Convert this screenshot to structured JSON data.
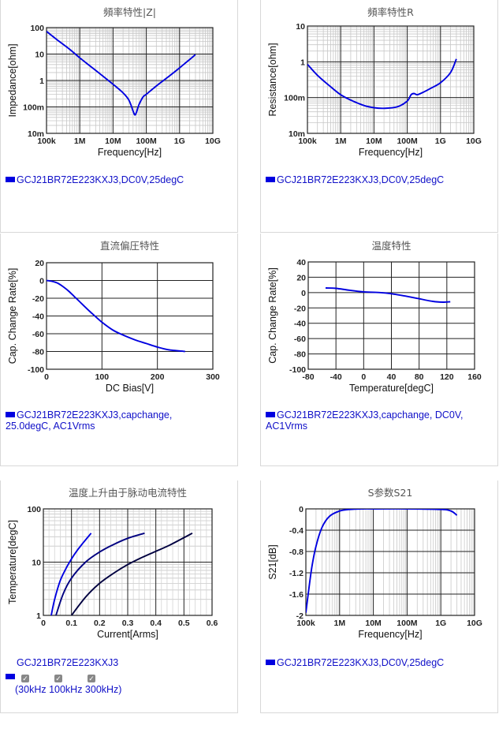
{
  "chart_data": [
    {
      "type": "line",
      "title": "頻率特性|Z|",
      "xlabel": "Frequency[Hz]",
      "ylabel": "Impedance[ohm]",
      "x_scale": "log",
      "y_scale": "log",
      "xlim": [
        100000,
        10000000000
      ],
      "ylim": [
        0.01,
        100
      ],
      "x_ticks": [
        {
          "v": 100000,
          "label": "100k"
        },
        {
          "v": 1000000,
          "label": "1M"
        },
        {
          "v": 10000000,
          "label": "10M"
        },
        {
          "v": 100000000,
          "label": "100M"
        },
        {
          "v": 1000000000,
          "label": "1G"
        },
        {
          "v": 10000000000,
          "label": "10G"
        }
      ],
      "y_ticks": [
        {
          "v": 0.01,
          "label": "10m"
        },
        {
          "v": 0.1,
          "label": "100m"
        },
        {
          "v": 1,
          "label": "1"
        },
        {
          "v": 10,
          "label": "10"
        },
        {
          "v": 100,
          "label": "100"
        }
      ],
      "grid": true,
      "series": [
        {
          "name": "GCJ21BR72E223KXJ3,DC0V,25degC",
          "color": "#0000e0",
          "x": [
            100000,
            200000,
            500000,
            1000000,
            2000000,
            5000000,
            10000000,
            20000000,
            30000000,
            40000000,
            45000000,
            50000000,
            60000000,
            80000000,
            100000000,
            200000000,
            500000000,
            1000000000,
            2000000000,
            3000000000
          ],
          "y": [
            72,
            36,
            15,
            7.2,
            3.6,
            1.45,
            0.72,
            0.34,
            0.18,
            0.07,
            0.05,
            0.06,
            0.12,
            0.24,
            0.3,
            0.62,
            1.5,
            3,
            6.2,
            9.5
          ]
        }
      ]
    },
    {
      "type": "line",
      "title": "頻率特性R",
      "xlabel": "Frequency[Hz]",
      "ylabel": "Resistance[ohm]",
      "x_scale": "log",
      "y_scale": "log",
      "xlim": [
        100000,
        10000000000
      ],
      "ylim": [
        0.01,
        10
      ],
      "x_ticks": [
        {
          "v": 100000,
          "label": "100k"
        },
        {
          "v": 1000000,
          "label": "1M"
        },
        {
          "v": 10000000,
          "label": "10M"
        },
        {
          "v": 100000000,
          "label": "100M"
        },
        {
          "v": 1000000000,
          "label": "1G"
        },
        {
          "v": 10000000000,
          "label": "10G"
        }
      ],
      "y_ticks": [
        {
          "v": 0.01,
          "label": "10m"
        },
        {
          "v": 0.1,
          "label": "100m"
        },
        {
          "v": 1,
          "label": "1"
        },
        {
          "v": 10,
          "label": "10"
        }
      ],
      "grid": true,
      "series": [
        {
          "name": "GCJ21BR72E223KXJ3,DC0V,25degC",
          "color": "#0000e0",
          "x": [
            100000,
            200000,
            500000,
            1000000,
            2000000,
            5000000,
            10000000,
            20000000,
            50000000,
            100000000,
            130000000,
            160000000,
            200000000,
            300000000,
            500000000,
            1000000000,
            2000000000,
            3000000000
          ],
          "y": [
            0.85,
            0.42,
            0.2,
            0.12,
            0.085,
            0.06,
            0.052,
            0.05,
            0.055,
            0.08,
            0.12,
            0.13,
            0.12,
            0.14,
            0.18,
            0.26,
            0.5,
            1.2
          ]
        }
      ]
    },
    {
      "type": "line",
      "title": "直流偏圧特性",
      "xlabel": "DC Bias[V]",
      "ylabel": "Cap. Change Rate[%]",
      "xlim": [
        0,
        300
      ],
      "ylim": [
        -100,
        20
      ],
      "x_ticks": [
        {
          "v": 0,
          "label": "0"
        },
        {
          "v": 100,
          "label": "100"
        },
        {
          "v": 200,
          "label": "200"
        },
        {
          "v": 300,
          "label": "300"
        }
      ],
      "y_ticks": [
        {
          "v": 20,
          "label": "20"
        },
        {
          "v": 0,
          "label": "0"
        },
        {
          "v": -20,
          "label": "-20"
        },
        {
          "v": -40,
          "label": "-40"
        },
        {
          "v": -60,
          "label": "-60"
        },
        {
          "v": -80,
          "label": "-80"
        },
        {
          "v": -100,
          "label": "-100"
        }
      ],
      "grid": true,
      "series": [
        {
          "name": "GCJ21BR72E223KXJ3,capchange, 25.0degC, AC1Vrms",
          "color": "#0000e0",
          "x": [
            0,
            10,
            20,
            30,
            40,
            50,
            60,
            80,
            100,
            120,
            140,
            160,
            180,
            200,
            220,
            250
          ],
          "y": [
            0,
            -1,
            -3,
            -7,
            -12,
            -18,
            -24,
            -36,
            -47,
            -56,
            -62,
            -67,
            -71,
            -75,
            -78,
            -80
          ]
        }
      ]
    },
    {
      "type": "line",
      "title": "温度特性",
      "xlabel": "Temperature[degC]",
      "ylabel": "Cap. Change Rate[%]",
      "xlim": [
        -80,
        160
      ],
      "ylim": [
        -100,
        40
      ],
      "x_ticks": [
        {
          "v": -80,
          "label": "-80"
        },
        {
          "v": -40,
          "label": "-40"
        },
        {
          "v": 0,
          "label": "0"
        },
        {
          "v": 40,
          "label": "40"
        },
        {
          "v": 80,
          "label": "80"
        },
        {
          "v": 120,
          "label": "120"
        },
        {
          "v": 160,
          "label": "160"
        }
      ],
      "y_ticks": [
        {
          "v": 40,
          "label": "40"
        },
        {
          "v": 20,
          "label": "20"
        },
        {
          "v": 0,
          "label": "0"
        },
        {
          "v": -20,
          "label": "-20"
        },
        {
          "v": -40,
          "label": "-40"
        },
        {
          "v": -60,
          "label": "-60"
        },
        {
          "v": -80,
          "label": "-80"
        },
        {
          "v": -100,
          "label": "-100"
        }
      ],
      "grid": true,
      "series": [
        {
          "name": "GCJ21BR72E223KXJ3,capchange, DC0V, AC1Vrms",
          "color": "#0000e0",
          "x": [
            -55,
            -40,
            -20,
            0,
            25,
            40,
            60,
            80,
            100,
            115,
            125
          ],
          "y": [
            6,
            5.5,
            3,
            1,
            0,
            -1.5,
            -4.5,
            -8,
            -11.5,
            -12.5,
            -12
          ]
        }
      ]
    },
    {
      "type": "line",
      "title": "温度上升由于脉动电流特性",
      "xlabel": "Current[Arms]",
      "ylabel": "Temperature[degC]",
      "y_scale": "log",
      "xlim": [
        0,
        0.6
      ],
      "ylim": [
        1,
        100
      ],
      "x_ticks": [
        {
          "v": 0,
          "label": "0"
        },
        {
          "v": 0.1,
          "label": "0.1"
        },
        {
          "v": 0.2,
          "label": "0.2"
        },
        {
          "v": 0.3,
          "label": "0.3"
        },
        {
          "v": 0.4,
          "label": "0.4"
        },
        {
          "v": 0.5,
          "label": "0.5"
        },
        {
          "v": 0.6,
          "label": "0.6"
        }
      ],
      "y_ticks": [
        {
          "v": 1,
          "label": "1"
        },
        {
          "v": 10,
          "label": "10"
        },
        {
          "v": 100,
          "label": "100"
        }
      ],
      "grid": true,
      "series": [
        {
          "name": "30kHz",
          "color": "#0000e0",
          "x": [
            0.028,
            0.04,
            0.06,
            0.08,
            0.1,
            0.12,
            0.14,
            0.17
          ],
          "y": [
            1,
            2,
            4.5,
            7.5,
            11.5,
            16.5,
            22.5,
            35
          ]
        },
        {
          "name": "100kHz",
          "color": "#000080",
          "x": [
            0.045,
            0.07,
            0.1,
            0.15,
            0.2,
            0.25,
            0.3,
            0.36
          ],
          "y": [
            1,
            2.5,
            5,
            10,
            15.5,
            21.5,
            28,
            35
          ]
        },
        {
          "name": "300kHz",
          "color": "#000040",
          "x": [
            0.1,
            0.15,
            0.2,
            0.25,
            0.3,
            0.35,
            0.4,
            0.45,
            0.53
          ],
          "y": [
            1,
            2.2,
            4,
            6.2,
            9,
            12.2,
            16,
            21,
            35
          ]
        }
      ]
    },
    {
      "type": "line",
      "title": "S参数S21",
      "xlabel": "Frequency[Hz]",
      "ylabel": "S21[dB]",
      "x_scale": "log",
      "xlim": [
        100000,
        10000000000
      ],
      "ylim": [
        -2,
        0
      ],
      "x_ticks": [
        {
          "v": 100000,
          "label": "100k"
        },
        {
          "v": 1000000,
          "label": "1M"
        },
        {
          "v": 10000000,
          "label": "10M"
        },
        {
          "v": 100000000,
          "label": "100M"
        },
        {
          "v": 1000000000,
          "label": "1G"
        },
        {
          "v": 10000000000,
          "label": "10G"
        }
      ],
      "y_ticks": [
        {
          "v": 0,
          "label": "0"
        },
        {
          "v": -0.4,
          "label": "-0.4"
        },
        {
          "v": -0.8,
          "label": "-0.8"
        },
        {
          "v": -1.2,
          "label": "-1.2"
        },
        {
          "v": -1.6,
          "label": "-1.6"
        },
        {
          "v": -2,
          "label": "-2"
        }
      ],
      "grid": true,
      "series": [
        {
          "name": "GCJ21BR72E223KXJ3,DC0V,25degC",
          "color": "#0000e0",
          "x": [
            100000,
            120000,
            150000,
            200000,
            300000,
            500000,
            1000000,
            2000000,
            5000000,
            10000000,
            100000000,
            1000000000,
            2000000000,
            3000000000
          ],
          "y": [
            -1.95,
            -1.55,
            -1.1,
            -0.7,
            -0.35,
            -0.14,
            -0.04,
            -0.01,
            0,
            0,
            0,
            -0.01,
            -0.04,
            -0.12
          ]
        }
      ]
    }
  ],
  "legends": [
    {
      "lines": [
        "GCJ21BR72E223KXJ3,DC0V,25degC"
      ]
    },
    {
      "lines": [
        "GCJ21BR72E223KXJ3,DC0V,25degC"
      ]
    },
    {
      "lines": [
        "GCJ21BR72E223KXJ3,capchange,",
        "25.0degC, AC1Vrms"
      ]
    },
    {
      "lines": [
        "GCJ21BR72E223KXJ3,capchange, DC0V,",
        "AC1Vrms"
      ]
    },
    {
      "title": "GCJ21BR72E223KXJ3",
      "footer": "(30kHz 100kHz 300kHz)"
    },
    {
      "lines": [
        "GCJ21BR72E223KXJ3,DC0V,25degC"
      ]
    }
  ]
}
